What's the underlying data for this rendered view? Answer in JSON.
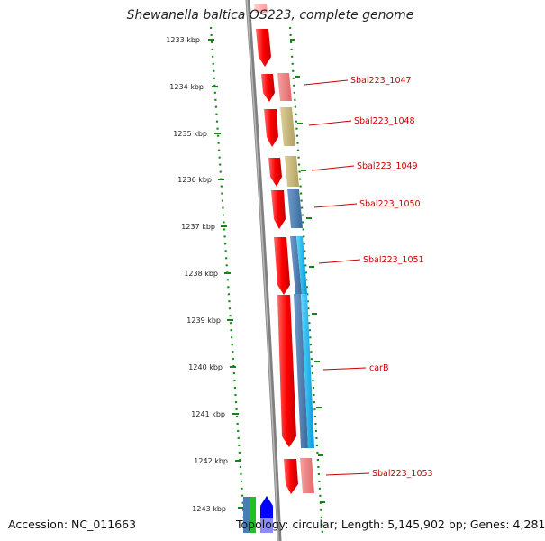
{
  "title": "Shewanella baltica OS223, complete genome",
  "accession": "Accession: NC_011663",
  "topology": "Topology: circular; Length: 5,145,902 bp; Genes: 4,281",
  "scale": {
    "ticks": [
      "1233 kbp",
      "1234 kbp",
      "1235 kbp",
      "1236 kbp",
      "1237 kbp",
      "1238 kbp",
      "1239 kbp",
      "1240 kbp",
      "1241 kbp",
      "1242 kbp",
      "1243 kbp"
    ]
  },
  "gene_labels": [
    "Sbal223_1047",
    "Sbal223_1048",
    "Sbal223_1049",
    "Sbal223_1050",
    "Sbal223_1051",
    "carB",
    "Sbal223_1053"
  ],
  "colors": {
    "cds": "#ff0000",
    "cds_faded": "#ffb0b0",
    "pink": "#f08080",
    "khaki": "#c8b870",
    "steel": "#4a7db0",
    "cyan": "#00b8f0",
    "blue": "#0000ff",
    "green": "#22c022",
    "backbone": "#808080",
    "dots": "#118811"
  }
}
